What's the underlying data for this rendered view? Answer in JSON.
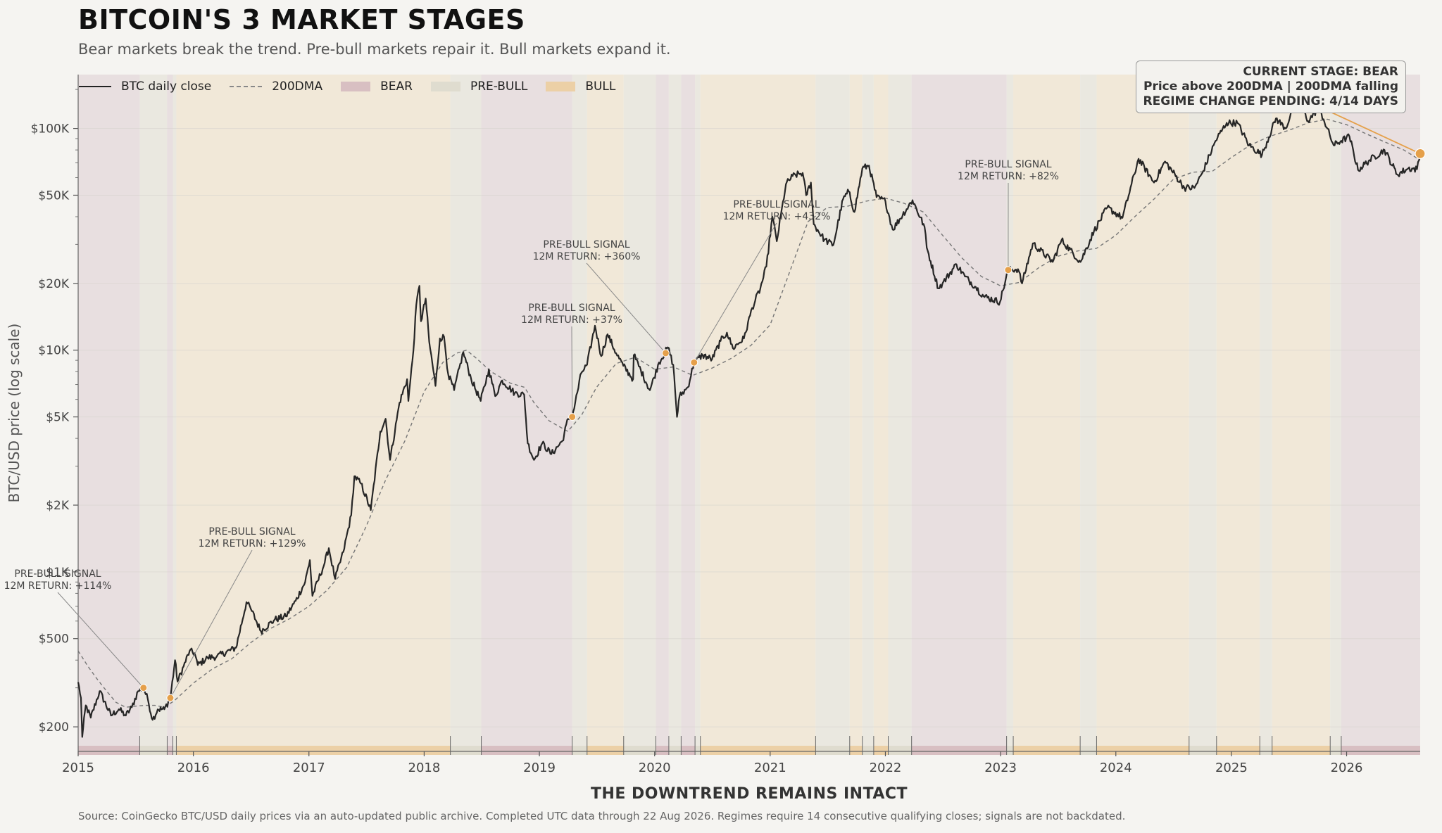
{
  "title": "BITCOIN'S 3 MARKET STAGES",
  "subtitle": "Bear markets break the trend. Pre-bull markets repair it. Bull markets expand it.",
  "source": "Source: CoinGecko BTC/USD daily prices via an auto-updated public archive. Completed UTC data through 22 Aug 2026. Regimes require 14 consecutive qualifying closes; signals are not backdated.",
  "status": {
    "line1": "CURRENT STAGE: BEAR",
    "line2": "Price above 200DMA  |  200DMA falling",
    "line3": "REGIME CHANGE PENDING: 4/14 DAYS"
  },
  "colors": {
    "bear": "#d8bfc2",
    "prebull": "#dfdccf",
    "bull": "#ecd0a6",
    "bear_bg": "#e8dfe0",
    "prebull_bg": "#eae8e0",
    "bull_bg": "#f1e8d8",
    "accent": "#e5a04a",
    "price": "#262626",
    "ma": "#777777"
  },
  "chart_data": {
    "type": "line",
    "title": "BITCOIN'S 3 MARKET STAGES",
    "xlabel": "THE DOWNTREND REMAINS INTACT",
    "ylabel": "BTC/USD price (log scale)",
    "y_scale": "log",
    "ylim": [
      155,
      175000
    ],
    "xlim": [
      "2015-01-01",
      "2026-08-22"
    ],
    "x_ticks": [
      "2015",
      "2016",
      "2017",
      "2018",
      "2019",
      "2020",
      "2021",
      "2022",
      "2023",
      "2024",
      "2025",
      "2026"
    ],
    "y_ticks": [
      {
        "value": 200,
        "label": "$200"
      },
      {
        "value": 500,
        "label": "$500"
      },
      {
        "value": 1000,
        "label": "$1K"
      },
      {
        "value": 2000,
        "label": "$2K"
      },
      {
        "value": 5000,
        "label": "$5K"
      },
      {
        "value": 10000,
        "label": "$10K"
      },
      {
        "value": 20000,
        "label": "$20K"
      },
      {
        "value": 50000,
        "label": "$50K"
      },
      {
        "value": 100000,
        "label": "$100K"
      }
    ],
    "legend": {
      "placement": "top-left",
      "entries": [
        {
          "label": "BTC daily close",
          "kind": "solid"
        },
        {
          "label": "200DMA",
          "kind": "dashed"
        },
        {
          "label": "BEAR",
          "kind": "bear"
        },
        {
          "label": "PRE-BULL",
          "kind": "prebull"
        },
        {
          "label": "BULL",
          "kind": "bull"
        }
      ]
    },
    "regimes": [
      {
        "start": "2015-01-01",
        "end": "2015-07-15",
        "stage": "bear"
      },
      {
        "start": "2015-07-15",
        "end": "2015-10-10",
        "stage": "prebull"
      },
      {
        "start": "2015-10-10",
        "end": "2015-10-28",
        "stage": "bear"
      },
      {
        "start": "2015-10-28",
        "end": "2015-11-08",
        "stage": "prebull"
      },
      {
        "start": "2015-11-08",
        "end": "2018-03-25",
        "stage": "bull"
      },
      {
        "start": "2018-03-25",
        "end": "2018-07-01",
        "stage": "prebull"
      },
      {
        "start": "2018-07-01",
        "end": "2019-04-15",
        "stage": "bear"
      },
      {
        "start": "2019-04-15",
        "end": "2019-06-01",
        "stage": "prebull"
      },
      {
        "start": "2019-06-01",
        "end": "2019-09-25",
        "stage": "bull"
      },
      {
        "start": "2019-09-25",
        "end": "2020-01-05",
        "stage": "prebull"
      },
      {
        "start": "2020-01-05",
        "end": "2020-02-15",
        "stage": "bear"
      },
      {
        "start": "2020-02-15",
        "end": "2020-03-25",
        "stage": "prebull"
      },
      {
        "start": "2020-03-25",
        "end": "2020-05-08",
        "stage": "bear"
      },
      {
        "start": "2020-05-08",
        "end": "2020-05-25",
        "stage": "prebull"
      },
      {
        "start": "2020-05-25",
        "end": "2021-05-25",
        "stage": "bull"
      },
      {
        "start": "2021-05-25",
        "end": "2021-09-10",
        "stage": "prebull"
      },
      {
        "start": "2021-09-10",
        "end": "2021-10-20",
        "stage": "bull"
      },
      {
        "start": "2021-10-20",
        "end": "2021-11-25",
        "stage": "prebull"
      },
      {
        "start": "2021-11-25",
        "end": "2022-01-10",
        "stage": "bull"
      },
      {
        "start": "2022-01-10",
        "end": "2022-03-25",
        "stage": "prebull"
      },
      {
        "start": "2022-03-25",
        "end": "2023-01-20",
        "stage": "bear"
      },
      {
        "start": "2023-01-20",
        "end": "2023-02-10",
        "stage": "prebull"
      },
      {
        "start": "2023-02-10",
        "end": "2023-09-10",
        "stage": "bull"
      },
      {
        "start": "2023-09-10",
        "end": "2023-11-01",
        "stage": "prebull"
      },
      {
        "start": "2023-11-01",
        "end": "2024-08-20",
        "stage": "bull"
      },
      {
        "start": "2024-08-20",
        "end": "2024-11-15",
        "stage": "prebull"
      },
      {
        "start": "2024-11-15",
        "end": "2025-04-01",
        "stage": "bull"
      },
      {
        "start": "2025-04-01",
        "end": "2025-05-10",
        "stage": "prebull"
      },
      {
        "start": "2025-05-10",
        "end": "2025-11-10",
        "stage": "bull"
      },
      {
        "start": "2025-11-10",
        "end": "2025-12-15",
        "stage": "prebull"
      },
      {
        "start": "2025-12-15",
        "end": "2026-08-22",
        "stage": "bear"
      }
    ],
    "signals": [
      {
        "date": "2015-07-27",
        "price": 300,
        "label": "PRE-BULL SIGNAL",
        "ret": "12M RETURN: +114%"
      },
      {
        "date": "2015-10-20",
        "price": 270,
        "label": "PRE-BULL SIGNAL",
        "ret": "12M RETURN: +129%"
      },
      {
        "date": "2019-04-15",
        "price": 5000,
        "label": "PRE-BULL SIGNAL",
        "ret": "12M RETURN: +37%"
      },
      {
        "date": "2020-02-05",
        "price": 9700,
        "label": "PRE-BULL SIGNAL",
        "ret": "12M RETURN: +360%"
      },
      {
        "date": "2020-05-05",
        "price": 8800,
        "label": "PRE-BULL SIGNAL",
        "ret": "12M RETURN: +432%"
      },
      {
        "date": "2023-01-25",
        "price": 23000,
        "label": "PRE-BULL SIGNAL",
        "ret": "12M RETURN: +82%"
      }
    ],
    "current_point": {
      "date": "2026-08-22",
      "price": 77000
    },
    "price_series": [
      [
        "2015-01-01",
        318
      ],
      [
        "2015-01-10",
        270
      ],
      [
        "2015-01-14",
        180
      ],
      [
        "2015-01-25",
        250
      ],
      [
        "2015-02-10",
        220
      ],
      [
        "2015-03-10",
        290
      ],
      [
        "2015-04-15",
        225
      ],
      [
        "2015-05-10",
        240
      ],
      [
        "2015-06-01",
        225
      ],
      [
        "2015-06-20",
        245
      ],
      [
        "2015-07-10",
        290
      ],
      [
        "2015-07-27",
        300
      ],
      [
        "2015-08-10",
        265
      ],
      [
        "2015-08-25",
        215
      ],
      [
        "2015-09-10",
        240
      ],
      [
        "2015-10-01",
        240
      ],
      [
        "2015-10-20",
        270
      ],
      [
        "2015-11-04",
        400
      ],
      [
        "2015-11-12",
        320
      ],
      [
        "2015-12-01",
        375
      ],
      [
        "2015-12-20",
        440
      ],
      [
        "2016-01-05",
        430
      ],
      [
        "2016-01-15",
        380
      ],
      [
        "2016-02-15",
        410
      ],
      [
        "2016-03-15",
        415
      ],
      [
        "2016-05-15",
        455
      ],
      [
        "2016-06-17",
        730
      ],
      [
        "2016-07-01",
        680
      ],
      [
        "2016-08-02",
        540
      ],
      [
        "2016-09-15",
        610
      ],
      [
        "2016-10-20",
        630
      ],
      [
        "2016-11-20",
        740
      ],
      [
        "2016-12-20",
        900
      ],
      [
        "2017-01-04",
        1130
      ],
      [
        "2017-01-12",
        780
      ],
      [
        "2017-02-20",
        1100
      ],
      [
        "2017-03-05",
        1280
      ],
      [
        "2017-03-25",
        930
      ],
      [
        "2017-04-20",
        1230
      ],
      [
        "2017-05-15",
        1800
      ],
      [
        "2017-05-25",
        2700
      ],
      [
        "2017-06-15",
        2500
      ],
      [
        "2017-07-16",
        1900
      ],
      [
        "2017-08-15",
        4300
      ],
      [
        "2017-09-01",
        4900
      ],
      [
        "2017-09-15",
        3200
      ],
      [
        "2017-10-15",
        5800
      ],
      [
        "2017-11-08",
        7400
      ],
      [
        "2017-11-12",
        5900
      ],
      [
        "2017-11-28",
        10000
      ],
      [
        "2017-12-07",
        16000
      ],
      [
        "2017-12-17",
        19500
      ],
      [
        "2017-12-22",
        13500
      ],
      [
        "2018-01-06",
        17100
      ],
      [
        "2018-01-17",
        10900
      ],
      [
        "2018-02-06",
        6900
      ],
      [
        "2018-02-20",
        11300
      ],
      [
        "2018-03-05",
        11500
      ],
      [
        "2018-03-18",
        7800
      ],
      [
        "2018-04-06",
        6600
      ],
      [
        "2018-05-05",
        9800
      ],
      [
        "2018-05-30",
        7400
      ],
      [
        "2018-06-29",
        5900
      ],
      [
        "2018-07-25",
        8200
      ],
      [
        "2018-08-14",
        6200
      ],
      [
        "2018-09-05",
        7300
      ],
      [
        "2018-10-15",
        6400
      ],
      [
        "2018-11-14",
        6300
      ],
      [
        "2018-11-25",
        3800
      ],
      [
        "2018-12-15",
        3200
      ],
      [
        "2019-01-10",
        3800
      ],
      [
        "2019-02-08",
        3400
      ],
      [
        "2019-03-15",
        3900
      ],
      [
        "2019-04-02",
        4900
      ],
      [
        "2019-04-15",
        5000
      ],
      [
        "2019-05-14",
        7900
      ],
      [
        "2019-06-01",
        8600
      ],
      [
        "2019-06-26",
        12900
      ],
      [
        "2019-07-16",
        9400
      ],
      [
        "2019-08-05",
        11800
      ],
      [
        "2019-09-01",
        9700
      ],
      [
        "2019-09-24",
        8500
      ],
      [
        "2019-10-25",
        7400
      ],
      [
        "2019-10-27",
        9500
      ],
      [
        "2019-12-17",
        6600
      ],
      [
        "2020-01-15",
        8800
      ],
      [
        "2020-02-12",
        10300
      ],
      [
        "2020-02-29",
        8600
      ],
      [
        "2020-03-12",
        5000
      ],
      [
        "2020-03-20",
        6200
      ],
      [
        "2020-04-15",
        6800
      ],
      [
        "2020-05-05",
        8800
      ],
      [
        "2020-06-01",
        9500
      ],
      [
        "2020-07-01",
        9100
      ],
      [
        "2020-07-28",
        11000
      ],
      [
        "2020-08-17",
        12000
      ],
      [
        "2020-09-05",
        10200
      ],
      [
        "2020-10-10",
        11300
      ],
      [
        "2020-11-05",
        15500
      ],
      [
        "2020-12-01",
        19000
      ],
      [
        "2020-12-20",
        23800
      ],
      [
        "2021-01-08",
        40000
      ],
      [
        "2021-01-22",
        31000
      ],
      [
        "2021-02-20",
        56000
      ],
      [
        "2021-03-13",
        61000
      ],
      [
        "2021-04-14",
        63000
      ],
      [
        "2021-04-25",
        50000
      ],
      [
        "2021-05-10",
        57000
      ],
      [
        "2021-05-19",
        37000
      ],
      [
        "2021-06-22",
        31500
      ],
      [
        "2021-07-20",
        29800
      ],
      [
        "2021-08-20",
        48000
      ],
      [
        "2021-09-07",
        52000
      ],
      [
        "2021-09-25",
        42000
      ],
      [
        "2021-10-20",
        66000
      ],
      [
        "2021-11-10",
        68000
      ],
      [
        "2021-12-04",
        49000
      ],
      [
        "2022-01-01",
        47000
      ],
      [
        "2022-01-24",
        35000
      ],
      [
        "2022-03-28",
        47500
      ],
      [
        "2022-05-05",
        36000
      ],
      [
        "2022-05-12",
        29000
      ],
      [
        "2022-06-18",
        19000
      ],
      [
        "2022-07-01",
        20000
      ],
      [
        "2022-08-14",
        24400
      ],
      [
        "2022-09-10",
        21500
      ],
      [
        "2022-10-15",
        19200
      ],
      [
        "2022-11-08",
        17500
      ],
      [
        "2022-12-30",
        16500
      ],
      [
        "2023-01-25",
        23000
      ],
      [
        "2023-02-25",
        23200
      ],
      [
        "2023-03-10",
        20000
      ],
      [
        "2023-04-13",
        30300
      ],
      [
        "2023-06-15",
        25000
      ],
      [
        "2023-07-13",
        31400
      ],
      [
        "2023-09-11",
        25000
      ],
      [
        "2023-10-24",
        34500
      ],
      [
        "2023-12-05",
        44000
      ],
      [
        "2024-01-22",
        39500
      ],
      [
        "2024-03-13",
        73000
      ],
      [
        "2024-05-01",
        57000
      ],
      [
        "2024-06-05",
        71000
      ],
      [
        "2024-08-05",
        54000
      ],
      [
        "2024-09-06",
        53900
      ],
      [
        "2024-10-01",
        63000
      ],
      [
        "2024-11-12",
        88000
      ],
      [
        "2024-12-17",
        106000
      ],
      [
        "2025-01-20",
        106000
      ],
      [
        "2025-02-26",
        84000
      ],
      [
        "2025-04-08",
        76000
      ],
      [
        "2025-05-22",
        111000
      ],
      [
        "2025-06-22",
        100000
      ],
      [
        "2025-07-14",
        122000
      ],
      [
        "2025-08-14",
        123000
      ],
      [
        "2025-09-01",
        108000
      ],
      [
        "2025-10-06",
        124500
      ],
      [
        "2025-10-20",
        110000
      ],
      [
        "2025-11-21",
        84000
      ],
      [
        "2025-12-15",
        88000
      ],
      [
        "2026-01-10",
        92000
      ],
      [
        "2026-02-06",
        65000
      ],
      [
        "2026-03-15",
        72000
      ],
      [
        "2026-05-01",
        80000
      ],
      [
        "2026-06-10",
        62000
      ],
      [
        "2026-07-15",
        66000
      ],
      [
        "2026-08-12",
        65500
      ],
      [
        "2026-08-22",
        77000
      ]
    ],
    "ma_series": [
      [
        "2015-01-01",
        440
      ],
      [
        "2015-02-01",
        375
      ],
      [
        "2015-03-01",
        330
      ],
      [
        "2015-04-01",
        290
      ],
      [
        "2015-05-01",
        258
      ],
      [
        "2015-06-01",
        245
      ],
      [
        "2015-07-01",
        248
      ],
      [
        "2015-08-01",
        250
      ],
      [
        "2015-09-01",
        250
      ],
      [
        "2015-10-01",
        245
      ],
      [
        "2015-11-01",
        262
      ],
      [
        "2016-01-01",
        315
      ],
      [
        "2016-03-01",
        365
      ],
      [
        "2016-05-01",
        405
      ],
      [
        "2016-07-01",
        480
      ],
      [
        "2016-09-01",
        555
      ],
      [
        "2016-11-01",
        615
      ],
      [
        "2017-01-01",
        700
      ],
      [
        "2017-03-01",
        830
      ],
      [
        "2017-05-01",
        1050
      ],
      [
        "2017-07-01",
        1600
      ],
      [
        "2017-09-01",
        2600
      ],
      [
        "2017-11-01",
        3900
      ],
      [
        "2018-01-01",
        6500
      ],
      [
        "2018-03-01",
        8800
      ],
      [
        "2018-04-15",
        9700
      ],
      [
        "2018-05-15",
        10000
      ],
      [
        "2018-06-15",
        9200
      ],
      [
        "2018-08-01",
        8000
      ],
      [
        "2018-10-01",
        7100
      ],
      [
        "2018-11-15",
        6800
      ],
      [
        "2018-12-15",
        5800
      ],
      [
        "2019-02-01",
        4800
      ],
      [
        "2019-04-01",
        4300
      ],
      [
        "2019-05-15",
        5100
      ],
      [
        "2019-07-01",
        6800
      ],
      [
        "2019-09-01",
        8700
      ],
      [
        "2019-11-01",
        9300
      ],
      [
        "2020-01-01",
        8200
      ],
      [
        "2020-03-01",
        8400
      ],
      [
        "2020-05-01",
        7700
      ],
      [
        "2020-07-01",
        8300
      ],
      [
        "2020-09-01",
        9200
      ],
      [
        "2020-11-01",
        10500
      ],
      [
        "2021-01-01",
        13000
      ],
      [
        "2021-03-01",
        22000
      ],
      [
        "2021-05-01",
        38000
      ],
      [
        "2021-07-01",
        44000
      ],
      [
        "2021-09-01",
        44500
      ],
      [
        "2021-11-01",
        47000
      ],
      [
        "2022-01-01",
        48500
      ],
      [
        "2022-03-01",
        46000
      ],
      [
        "2022-05-01",
        42000
      ],
      [
        "2022-07-01",
        33000
      ],
      [
        "2022-09-01",
        26000
      ],
      [
        "2022-11-01",
        21500
      ],
      [
        "2023-01-01",
        19500
      ],
      [
        "2023-03-01",
        20200
      ],
      [
        "2023-05-01",
        23500
      ],
      [
        "2023-07-01",
        26500
      ],
      [
        "2023-09-01",
        28000
      ],
      [
        "2023-11-01",
        28800
      ],
      [
        "2024-01-01",
        33000
      ],
      [
        "2024-03-01",
        40000
      ],
      [
        "2024-05-01",
        48000
      ],
      [
        "2024-07-01",
        59000
      ],
      [
        "2024-09-01",
        63500
      ],
      [
        "2024-11-01",
        64000
      ],
      [
        "2025-01-01",
        74000
      ],
      [
        "2025-03-01",
        84000
      ],
      [
        "2025-05-01",
        92000
      ],
      [
        "2025-07-01",
        98000
      ],
      [
        "2025-09-01",
        106000
      ],
      [
        "2025-11-01",
        110000
      ],
      [
        "2026-01-01",
        104000
      ],
      [
        "2026-03-01",
        95000
      ],
      [
        "2026-05-01",
        87000
      ],
      [
        "2026-07-01",
        80000
      ],
      [
        "2026-08-22",
        72000
      ]
    ]
  }
}
